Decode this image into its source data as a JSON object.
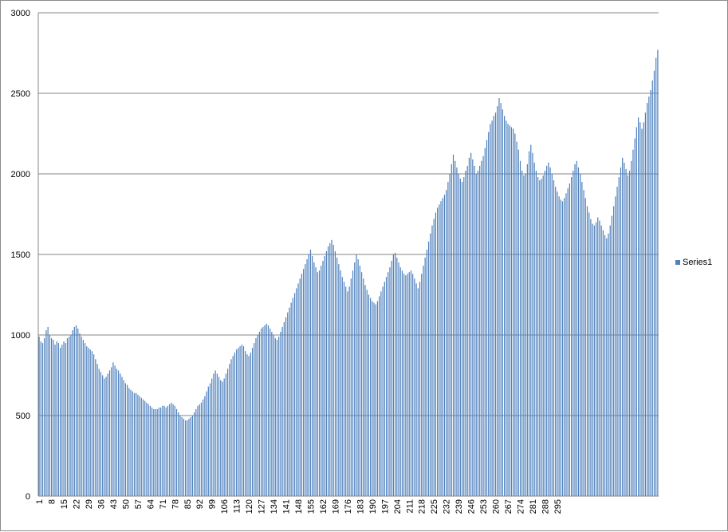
{
  "chart_data": {
    "type": "bar",
    "title": "",
    "xlabel": "",
    "ylabel": "",
    "ylim": [
      0,
      3000
    ],
    "yticks": [
      0,
      500,
      1000,
      1500,
      2000,
      2500,
      3000
    ],
    "ytick_labels": [
      "0",
      "500",
      "1000",
      "1500",
      "2000",
      "2500",
      "3000"
    ],
    "grid": true,
    "legend_position": "right",
    "bar_color": "#4f81bd",
    "x_tick_labels": [
      "1",
      "8",
      "15",
      "22",
      "29",
      "36",
      "43",
      "50",
      "57",
      "64",
      "71",
      "78",
      "85",
      "92",
      "99",
      "106",
      "113",
      "120",
      "127",
      "134",
      "141",
      "148",
      "155",
      "162",
      "169",
      "176",
      "183",
      "190",
      "197",
      "204",
      "211",
      "218",
      "225",
      "232",
      "239",
      "246",
      "253",
      "260",
      "267",
      "274",
      "281",
      "288",
      "295"
    ],
    "series": [
      {
        "name": "Series1",
        "values": [
          990,
          960,
          950,
          980,
          1030,
          1050,
          1000,
          980,
          970,
          940,
          960,
          950,
          920,
          940,
          960,
          950,
          980,
          990,
          1000,
          1030,
          1050,
          1060,
          1040,
          1010,
          990,
          970,
          950,
          930,
          920,
          910,
          900,
          880,
          850,
          820,
          790,
          770,
          750,
          730,
          740,
          760,
          780,
          800,
          830,
          810,
          790,
          780,
          760,
          740,
          720,
          700,
          690,
          670,
          660,
          650,
          640,
          640,
          630,
          620,
          610,
          600,
          590,
          580,
          570,
          560,
          550,
          540,
          540,
          540,
          550,
          550,
          560,
          560,
          550,
          560,
          570,
          580,
          570,
          560,
          540,
          520,
          500,
          490,
          480,
          470,
          470,
          480,
          490,
          500,
          520,
          540,
          560,
          570,
          580,
          600,
          620,
          650,
          680,
          700,
          730,
          760,
          780,
          760,
          740,
          720,
          710,
          730,
          760,
          790,
          820,
          850,
          870,
          890,
          910,
          920,
          930,
          940,
          930,
          900,
          880,
          870,
          890,
          920,
          950,
          980,
          1000,
          1020,
          1040,
          1050,
          1060,
          1070,
          1060,
          1040,
          1020,
          1000,
          980,
          970,
          990,
          1020,
          1050,
          1080,
          1110,
          1140,
          1170,
          1200,
          1230,
          1260,
          1290,
          1320,
          1350,
          1380,
          1410,
          1440,
          1470,
          1500,
          1530,
          1490,
          1450,
          1420,
          1390,
          1400,
          1430,
          1460,
          1490,
          1520,
          1550,
          1570,
          1590,
          1560,
          1520,
          1480,
          1440,
          1400,
          1360,
          1330,
          1300,
          1270,
          1300,
          1350,
          1400,
          1450,
          1500,
          1470,
          1430,
          1390,
          1350,
          1310,
          1280,
          1250,
          1230,
          1210,
          1200,
          1190,
          1210,
          1240,
          1270,
          1300,
          1330,
          1360,
          1390,
          1420,
          1460,
          1500,
          1510,
          1480,
          1450,
          1420,
          1400,
          1380,
          1370,
          1380,
          1390,
          1400,
          1380,
          1350,
          1320,
          1290,
          1330,
          1380,
          1430,
          1480,
          1530,
          1580,
          1630,
          1680,
          1720,
          1760,
          1790,
          1810,
          1830,
          1850,
          1870,
          1900,
          1950,
          2000,
          2060,
          2120,
          2080,
          2040,
          2000,
          1970,
          1950,
          1980,
          2020,
          2050,
          2100,
          2130,
          2090,
          2050,
          2000,
          2020,
          2050,
          2080,
          2110,
          2160,
          2210,
          2260,
          2310,
          2330,
          2360,
          2380,
          2420,
          2470,
          2440,
          2400,
          2360,
          2330,
          2310,
          2300,
          2290,
          2280,
          2250,
          2200,
          2150,
          2080,
          2020,
          1990,
          2000,
          2060,
          2140,
          2180,
          2130,
          2070,
          2020,
          1980,
          1960,
          1970,
          1990,
          2020,
          2050,
          2070,
          2040,
          2000,
          1960,
          1920,
          1890,
          1860,
          1840,
          1830,
          1850,
          1880,
          1910,
          1940,
          1980,
          2020,
          2060,
          2080,
          2040,
          2000,
          1950,
          1900,
          1850,
          1800,
          1760,
          1720,
          1690,
          1680,
          1700,
          1730,
          1710,
          1680,
          1650,
          1620,
          1600,
          1630,
          1680,
          1740,
          1800,
          1860,
          1920,
          1980,
          2040,
          2100,
          2070,
          2030,
          1990,
          2020,
          2080,
          2150,
          2220,
          2290,
          2350,
          2320,
          2280,
          2320,
          2380,
          2440,
          2480,
          2520,
          2580,
          2640,
          2720,
          2770
        ]
      }
    ]
  }
}
